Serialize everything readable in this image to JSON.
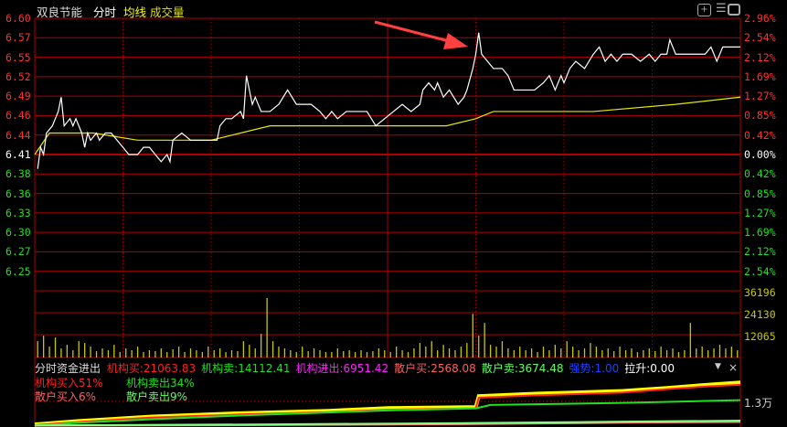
{
  "header": {
    "stock_name": "双良节能",
    "mode_label": "分时",
    "avg_line_label": "均线",
    "volume_label": "成交量",
    "icons": [
      "zoom-in-icon",
      "menu-icon",
      "panel-toggle-icon"
    ]
  },
  "flow_panel": {
    "title": "分时资金进出",
    "items": [
      {
        "label": "机构买:",
        "value": "21063.83",
        "color": "#ff2020"
      },
      {
        "label": "机构卖:",
        "value": "14112.41",
        "color": "#20e020"
      },
      {
        "label": "机构进出:",
        "value": "6951.42",
        "color": "#ff20ff"
      },
      {
        "label": "散户买:",
        "value": "2568.08",
        "color": "#ff6060"
      },
      {
        "label": "散户卖:",
        "value": "3674.48",
        "color": "#60ff60"
      },
      {
        "label": "强势:",
        "value": "1.00",
        "color": "#2040ff"
      },
      {
        "label": "拉升:",
        "value": "0.00",
        "color": "#ffffff"
      }
    ],
    "legend": [
      {
        "text": "机构买入51%",
        "color": "#ff2020"
      },
      {
        "text": "机构卖出34%",
        "color": "#20e020"
      },
      {
        "text": "散户买入6%",
        "color": "#ff6060"
      },
      {
        "text": "散户卖出9%",
        "color": "#60ff60"
      }
    ],
    "axis_label": "1.3万",
    "dropdown_icon": "triangle-down-icon",
    "close_icon": "close-icon"
  },
  "colors": {
    "up": "#ff3030",
    "down": "#20e020",
    "grid": "#b00000",
    "price_line": "#ffffff",
    "avg_line": "#e8e800",
    "volume": "#c8c800"
  },
  "chart_data": {
    "type": "line",
    "prev_close": 6.41,
    "price_ticks": [
      "6.60",
      "6.57",
      "6.55",
      "6.52",
      "6.49",
      "6.46",
      "6.44",
      "6.41",
      "6.38",
      "6.36",
      "6.33",
      "6.30",
      "6.27",
      "6.25"
    ],
    "pct_ticks": [
      "2.96%",
      "2.54%",
      "2.12%",
      "1.69%",
      "1.27%",
      "0.85%",
      "0.42%",
      "0.00%",
      "0.42%",
      "0.85%",
      "1.27%",
      "1.69%",
      "2.12%",
      "2.54%"
    ],
    "ylim": [
      6.22,
      6.6
    ],
    "xlim_minutes": [
      0,
      240
    ],
    "price_series": {
      "minutes": [
        1,
        2,
        3,
        4,
        6,
        7,
        8,
        9,
        10,
        12,
        13,
        14,
        16,
        17,
        18,
        19,
        21,
        22,
        24,
        26,
        28,
        30,
        32,
        35,
        37,
        39,
        41,
        43,
        45,
        46,
        47,
        50,
        53,
        57,
        60,
        62,
        63,
        65,
        67,
        70,
        71,
        72,
        74,
        75,
        77,
        80,
        83,
        86,
        89,
        94,
        97,
        99,
        101,
        103,
        106,
        109,
        113,
        116,
        119,
        122,
        125,
        128,
        131,
        132,
        134,
        136,
        137,
        139,
        141,
        144,
        146,
        147,
        149,
        150,
        151,
        152,
        154,
        156,
        159,
        161,
        163,
        165,
        168,
        170,
        173,
        175,
        177,
        179,
        180,
        182,
        184,
        187,
        190,
        192,
        194,
        196,
        198,
        200,
        203,
        206,
        209,
        211,
        213,
        215,
        216,
        218,
        221,
        225,
        228,
        230,
        232,
        234,
        235,
        237,
        240
      ],
      "prices": [
        6.39,
        6.42,
        6.41,
        6.44,
        6.45,
        6.46,
        6.47,
        6.49,
        6.45,
        6.46,
        6.45,
        6.46,
        6.44,
        6.42,
        6.44,
        6.43,
        6.44,
        6.43,
        6.44,
        6.44,
        6.43,
        6.42,
        6.41,
        6.41,
        6.42,
        6.42,
        6.41,
        6.4,
        6.41,
        6.4,
        6.43,
        6.44,
        6.43,
        6.43,
        6.43,
        6.43,
        6.45,
        6.46,
        6.46,
        6.47,
        6.46,
        6.52,
        6.48,
        6.49,
        6.47,
        6.47,
        6.48,
        6.5,
        6.48,
        6.48,
        6.47,
        6.46,
        6.47,
        6.46,
        6.47,
        6.47,
        6.47,
        6.45,
        6.46,
        6.47,
        6.48,
        6.47,
        6.48,
        6.5,
        6.51,
        6.5,
        6.51,
        6.49,
        6.5,
        6.48,
        6.49,
        6.5,
        6.53,
        6.55,
        6.58,
        6.55,
        6.54,
        6.53,
        6.53,
        6.52,
        6.5,
        6.5,
        6.5,
        6.5,
        6.51,
        6.52,
        6.5,
        6.52,
        6.51,
        6.53,
        6.54,
        6.53,
        6.55,
        6.56,
        6.54,
        6.55,
        6.54,
        6.55,
        6.55,
        6.54,
        6.55,
        6.54,
        6.55,
        6.55,
        6.57,
        6.55,
        6.55,
        6.55,
        6.55,
        6.56,
        6.54,
        6.56,
        6.56,
        6.56,
        6.56
      ]
    },
    "avg_series": {
      "minutes": [
        0,
        5,
        20,
        35,
        60,
        70,
        80,
        140,
        150,
        156,
        190,
        218,
        240
      ],
      "prices": [
        6.41,
        6.44,
        6.44,
        6.43,
        6.43,
        6.44,
        6.45,
        6.45,
        6.46,
        6.47,
        6.47,
        6.48,
        6.49
      ]
    },
    "volume_ticks": [
      "36196",
      "24130",
      "12065"
    ],
    "volume_max": 36196,
    "volume_every_2min": [
      9000,
      12000,
      6000,
      11000,
      5000,
      7000,
      4000,
      9000,
      8000,
      6000,
      3500,
      5000,
      4000,
      7000,
      3000,
      5000,
      4000,
      6000,
      3000,
      4000,
      3500,
      5000,
      3000,
      4500,
      6000,
      3000,
      5000,
      4000,
      3000,
      6000,
      4000,
      5000,
      3000,
      4000,
      3500,
      9000,
      7000,
      5000,
      13000,
      32700,
      9000,
      6000,
      5000,
      4000,
      3000,
      6000,
      3500,
      5000,
      4000,
      3000,
      3000,
      5000,
      3500,
      4000,
      3000,
      4000,
      3000,
      3500,
      5000,
      4000,
      3000,
      6000,
      4000,
      3000,
      5000,
      8000,
      6000,
      9000,
      4000,
      7000,
      5000,
      4000,
      6000,
      8000,
      24000,
      12000,
      19000,
      7000,
      6000,
      9000,
      5000,
      4000,
      6000,
      4000,
      5000,
      3000,
      6000,
      4000,
      7000,
      5000,
      9000,
      6000,
      4000,
      5000,
      8000,
      6000,
      4000,
      5000,
      3500,
      6000,
      4000,
      5000,
      3000,
      4000,
      5000,
      3500,
      6000,
      4000,
      5000,
      3000,
      4000,
      19000,
      5000,
      6000,
      4000,
      5000,
      7000,
      5000,
      6000,
      4000
    ],
    "flow_series": [
      {
        "color": "#ffff00",
        "minutes": [
          0,
          15,
          40,
          70,
          100,
          120,
          150,
          151,
          170,
          200,
          215,
          230,
          240
        ],
        "values": [
          0.5,
          1.5,
          2.8,
          3.8,
          4.5,
          5.3,
          5.6,
          8.8,
          9.5,
          10.3,
          11.2,
          12.2,
          12.8
        ]
      },
      {
        "color": "#ff2020",
        "minutes": [
          0,
          15,
          40,
          70,
          100,
          120,
          150,
          151,
          170,
          200,
          215,
          230,
          240
        ],
        "values": [
          0.3,
          1.2,
          2.5,
          3.4,
          4.1,
          4.8,
          5.2,
          8.3,
          9.0,
          9.8,
          10.8,
          11.7,
          12.1
        ]
      },
      {
        "color": "#20e020",
        "minutes": [
          0,
          15,
          40,
          70,
          100,
          120,
          150,
          155,
          200,
          230,
          240
        ],
        "values": [
          0.1,
          1.0,
          2.0,
          3.1,
          4.0,
          4.6,
          5.2,
          6.2,
          6.8,
          7.4,
          7.6
        ]
      },
      {
        "color": "#ff8080",
        "minutes": [
          0,
          80,
          150,
          200,
          240
        ],
        "values": [
          0.1,
          0.3,
          0.6,
          1.0,
          1.2
        ]
      },
      {
        "color": "#80ff80",
        "minutes": [
          0,
          80,
          150,
          200,
          240
        ],
        "values": [
          0.2,
          0.5,
          0.9,
          1.3,
          1.6
        ]
      }
    ],
    "flow_scale_max": 15,
    "annotation": "arrow"
  }
}
